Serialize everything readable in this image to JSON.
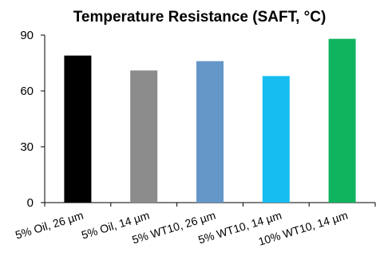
{
  "chart_data": {
    "type": "bar",
    "title": "Temperature Resistance (SAFT, °C)",
    "xlabel": "",
    "ylabel": "",
    "categories": [
      "5% Oil, 26 µm",
      "5% Oil, 14 µm",
      "5% WT10, 26 µm",
      "5% WT10, 14 µm",
      "10% WT10, 14 µm"
    ],
    "values": [
      79,
      71,
      76,
      68,
      88
    ],
    "colors": [
      "#000000",
      "#8c8c8c",
      "#6497c8",
      "#16bdf0",
      "#10b45f"
    ],
    "ylim": [
      0,
      90
    ],
    "yticks": [
      "0",
      "30",
      "60",
      "90"
    ],
    "grid": false,
    "legend": "none"
  }
}
